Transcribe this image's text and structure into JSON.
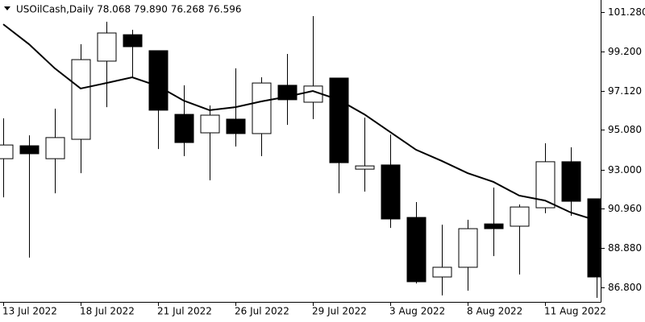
{
  "chart_data": {
    "type": "candlestick",
    "header": "USOilCash,Daily  78.068 79.890 76.268 76.596",
    "categories": [
      "13 Jul 2022",
      null,
      null,
      "18 Jul 2022",
      null,
      null,
      "21 Jul 2022",
      null,
      null,
      "26 Jul 2022",
      null,
      null,
      "29 Jul 2022",
      null,
      null,
      "3 Aug 2022",
      null,
      null,
      "8 Aug 2022",
      null,
      null,
      "11 Aug 2022",
      null,
      null
    ],
    "open": [
      93.57,
      94.25,
      93.57,
      94.59,
      98.7,
      100.09,
      99.25,
      95.9,
      94.93,
      95.65,
      94.89,
      97.43,
      96.54,
      97.81,
      93.02,
      93.24,
      90.48,
      87.35,
      87.86,
      90.14,
      90.02,
      90.99,
      93.41,
      91.46
    ],
    "high": [
      95.69,
      94.8,
      96.2,
      99.59,
      100.77,
      100.35,
      99.25,
      97.43,
      96.37,
      98.32,
      97.85,
      99.08,
      101.07,
      97.81,
      95.73,
      94.84,
      91.29,
      90.1,
      90.36,
      92.05,
      91.16,
      94.38,
      94.17,
      91.46
    ],
    "low": [
      91.54,
      88.37,
      91.75,
      92.81,
      96.28,
      97.81,
      94.08,
      93.7,
      92.43,
      94.21,
      93.7,
      95.35,
      95.65,
      91.75,
      91.84,
      89.93,
      87.01,
      86.38,
      86.63,
      88.45,
      87.48,
      90.7,
      90.57,
      86.25
    ],
    "close": [
      94.29,
      93.83,
      94.68,
      98.78,
      100.18,
      99.46,
      96.12,
      94.42,
      95.86,
      94.89,
      97.55,
      96.67,
      97.39,
      93.36,
      93.19,
      90.4,
      87.1,
      87.86,
      89.89,
      89.89,
      91.03,
      93.41,
      91.33,
      87.35
    ],
    "moving_average": {
      "color": "#000000",
      "values": [
        100.64,
        99.59,
        98.32,
        97.26,
        97.55,
        97.85,
        97.39,
        96.62,
        96.12,
        96.28,
        96.58,
        96.83,
        97.13,
        96.67,
        95.9,
        94.97,
        94.04,
        93.45,
        92.81,
        92.35,
        91.63,
        91.37,
        90.74,
        90.32
      ]
    },
    "bull_color": "#ffffff",
    "bear_color": "#000000",
    "ylim": [
      86.04,
      101.915
    ],
    "yticks": [
      {
        "value": 101.28,
        "label": "101.280"
      },
      {
        "value": 99.2,
        "label": "99.200"
      },
      {
        "value": 97.12,
        "label": "97.120"
      },
      {
        "value": 95.08,
        "label": "95.080"
      },
      {
        "value": 93.0,
        "label": "93.000"
      },
      {
        "value": 90.96,
        "label": "90.960"
      },
      {
        "value": 88.88,
        "label": "88.880"
      },
      {
        "value": 86.8,
        "label": "86.800"
      }
    ]
  }
}
